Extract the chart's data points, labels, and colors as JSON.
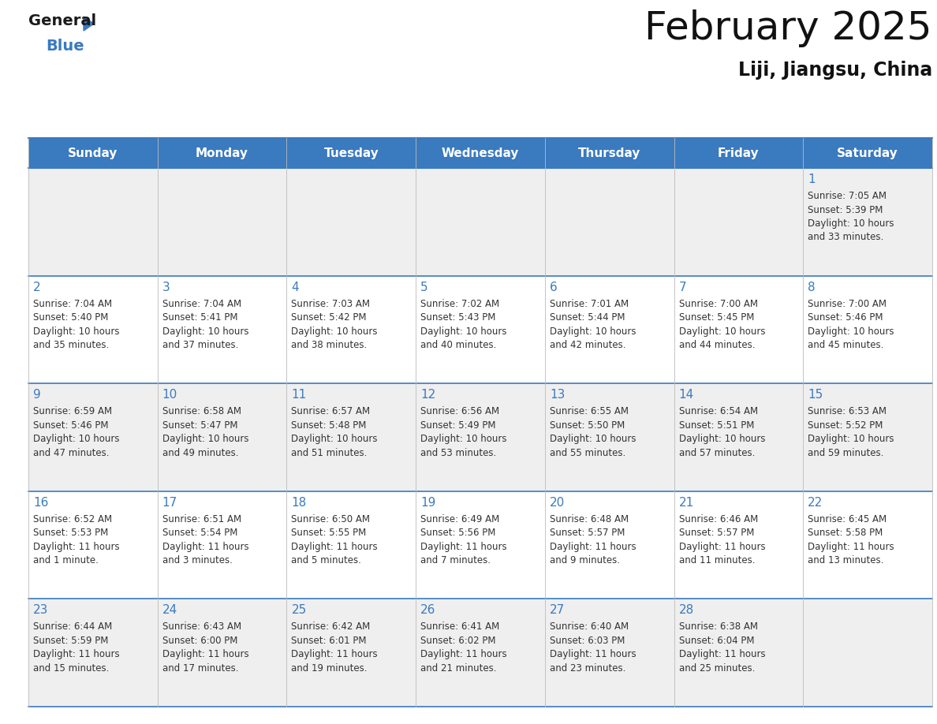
{
  "title": "February 2025",
  "subtitle": "Liji, Jiangsu, China",
  "header_color": "#3a7abf",
  "header_text_color": "#ffffff",
  "days_of_week": [
    "Sunday",
    "Monday",
    "Tuesday",
    "Wednesday",
    "Thursday",
    "Friday",
    "Saturday"
  ],
  "bg_color": "#ffffff",
  "cell_bg_even": "#efefef",
  "cell_bg_odd": "#ffffff",
  "border_color": "#3a7abf",
  "row_border_color": "#3a7abf",
  "day_num_color": "#3a7abf",
  "info_color": "#333333",
  "calendar": [
    [
      null,
      null,
      null,
      null,
      null,
      null,
      {
        "day": 1,
        "sunrise": "7:05 AM",
        "sunset": "5:39 PM",
        "daylight": "10 hours\nand 33 minutes."
      }
    ],
    [
      {
        "day": 2,
        "sunrise": "7:04 AM",
        "sunset": "5:40 PM",
        "daylight": "10 hours\nand 35 minutes."
      },
      {
        "day": 3,
        "sunrise": "7:04 AM",
        "sunset": "5:41 PM",
        "daylight": "10 hours\nand 37 minutes."
      },
      {
        "day": 4,
        "sunrise": "7:03 AM",
        "sunset": "5:42 PM",
        "daylight": "10 hours\nand 38 minutes."
      },
      {
        "day": 5,
        "sunrise": "7:02 AM",
        "sunset": "5:43 PM",
        "daylight": "10 hours\nand 40 minutes."
      },
      {
        "day": 6,
        "sunrise": "7:01 AM",
        "sunset": "5:44 PM",
        "daylight": "10 hours\nand 42 minutes."
      },
      {
        "day": 7,
        "sunrise": "7:00 AM",
        "sunset": "5:45 PM",
        "daylight": "10 hours\nand 44 minutes."
      },
      {
        "day": 8,
        "sunrise": "7:00 AM",
        "sunset": "5:46 PM",
        "daylight": "10 hours\nand 45 minutes."
      }
    ],
    [
      {
        "day": 9,
        "sunrise": "6:59 AM",
        "sunset": "5:46 PM",
        "daylight": "10 hours\nand 47 minutes."
      },
      {
        "day": 10,
        "sunrise": "6:58 AM",
        "sunset": "5:47 PM",
        "daylight": "10 hours\nand 49 minutes."
      },
      {
        "day": 11,
        "sunrise": "6:57 AM",
        "sunset": "5:48 PM",
        "daylight": "10 hours\nand 51 minutes."
      },
      {
        "day": 12,
        "sunrise": "6:56 AM",
        "sunset": "5:49 PM",
        "daylight": "10 hours\nand 53 minutes."
      },
      {
        "day": 13,
        "sunrise": "6:55 AM",
        "sunset": "5:50 PM",
        "daylight": "10 hours\nand 55 minutes."
      },
      {
        "day": 14,
        "sunrise": "6:54 AM",
        "sunset": "5:51 PM",
        "daylight": "10 hours\nand 57 minutes."
      },
      {
        "day": 15,
        "sunrise": "6:53 AM",
        "sunset": "5:52 PM",
        "daylight": "10 hours\nand 59 minutes."
      }
    ],
    [
      {
        "day": 16,
        "sunrise": "6:52 AM",
        "sunset": "5:53 PM",
        "daylight": "11 hours\nand 1 minute."
      },
      {
        "day": 17,
        "sunrise": "6:51 AM",
        "sunset": "5:54 PM",
        "daylight": "11 hours\nand 3 minutes."
      },
      {
        "day": 18,
        "sunrise": "6:50 AM",
        "sunset": "5:55 PM",
        "daylight": "11 hours\nand 5 minutes."
      },
      {
        "day": 19,
        "sunrise": "6:49 AM",
        "sunset": "5:56 PM",
        "daylight": "11 hours\nand 7 minutes."
      },
      {
        "day": 20,
        "sunrise": "6:48 AM",
        "sunset": "5:57 PM",
        "daylight": "11 hours\nand 9 minutes."
      },
      {
        "day": 21,
        "sunrise": "6:46 AM",
        "sunset": "5:57 PM",
        "daylight": "11 hours\nand 11 minutes."
      },
      {
        "day": 22,
        "sunrise": "6:45 AM",
        "sunset": "5:58 PM",
        "daylight": "11 hours\nand 13 minutes."
      }
    ],
    [
      {
        "day": 23,
        "sunrise": "6:44 AM",
        "sunset": "5:59 PM",
        "daylight": "11 hours\nand 15 minutes."
      },
      {
        "day": 24,
        "sunrise": "6:43 AM",
        "sunset": "6:00 PM",
        "daylight": "11 hours\nand 17 minutes."
      },
      {
        "day": 25,
        "sunrise": "6:42 AM",
        "sunset": "6:01 PM",
        "daylight": "11 hours\nand 19 minutes."
      },
      {
        "day": 26,
        "sunrise": "6:41 AM",
        "sunset": "6:02 PM",
        "daylight": "11 hours\nand 21 minutes."
      },
      {
        "day": 27,
        "sunrise": "6:40 AM",
        "sunset": "6:03 PM",
        "daylight": "11 hours\nand 23 minutes."
      },
      {
        "day": 28,
        "sunrise": "6:38 AM",
        "sunset": "6:04 PM",
        "daylight": "11 hours\nand 25 minutes."
      },
      null
    ]
  ],
  "logo_general_color": "#1a1a1a",
  "logo_blue_color": "#3a7abf",
  "logo_triangle_color": "#3a7abf"
}
